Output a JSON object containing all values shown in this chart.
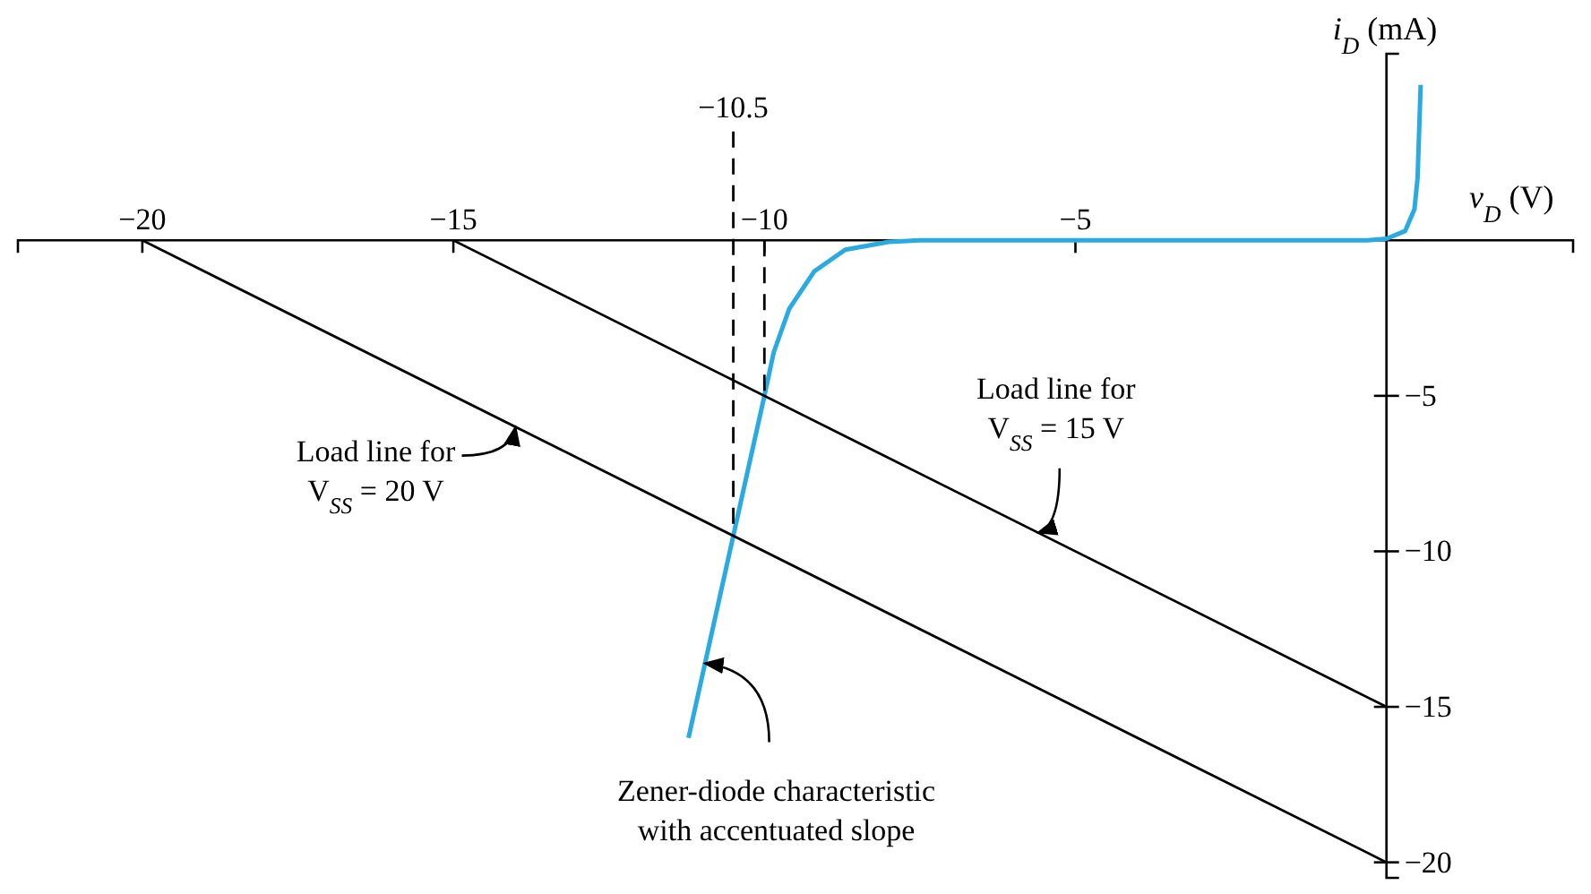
{
  "chart_data": {
    "type": "line",
    "xlabel": "v$_{D}$ (V)",
    "ylabel": "i$_{D}$ (mA)",
    "xlim": [
      -22,
      3
    ],
    "ylim": [
      -20.5,
      6
    ],
    "xticks": [
      -20,
      -15,
      -10,
      -5
    ],
    "yticks": [
      -5,
      -10,
      -15,
      -20
    ],
    "series": [
      {
        "color": "#29abe2",
        "x": [
          -11.22,
          -10.5,
          -10,
          -9.85,
          -9.6,
          -9.2,
          -8.7,
          -8.0,
          -7.5,
          -2,
          -0.3,
          0,
          0.3,
          0.45,
          0.5,
          0.55
        ],
        "values": [
          -16,
          -9.5,
          -5,
          -3.6,
          -2.2,
          -1.0,
          -0.3,
          -0.05,
          0,
          0,
          0,
          0.05,
          0.3,
          1,
          2,
          5
        ]
      },
      {
        "color": "#000000",
        "x": [
          -15,
          0
        ],
        "values": [
          0,
          -15
        ]
      },
      {
        "color": "#000000",
        "x": [
          -20,
          0
        ],
        "values": [
          0,
          -20
        ]
      },
      {
        "color": "#000000",
        "line_style": "dashed",
        "x": [
          -10.5,
          -10.5
        ],
        "values": [
          3.5,
          -9.5
        ]
      },
      {
        "color": "#000000",
        "line_style": "dashed",
        "x": [
          -10,
          -10
        ],
        "values": [
          0,
          -5
        ]
      }
    ],
    "annotations": [
      {
        "text": "−10.5",
        "x": -10.5,
        "y": 3.5
      },
      {
        "text": "Load line for\nV$_{SS}$ = 15 V",
        "x": -5.6,
        "y": -9.4
      },
      {
        "text": "Load line for\nV$_{SS}$ = 20 V",
        "x": -14,
        "y": -6
      },
      {
        "text": "Zener-diode characteristic\nwith accentuated slope",
        "x": -10.96,
        "y": -13.6
      }
    ]
  }
}
